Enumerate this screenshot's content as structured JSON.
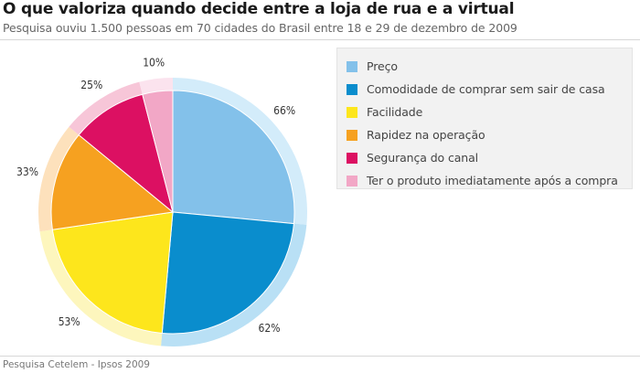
{
  "header": {
    "title": "O que valoriza quando decide entre a loja de rua e a virtual",
    "subtitle": "Pesquisa ouviu 1.500 pessoas em 70 cidades do Brasil entre 18 e 29 de dezembro de 2009"
  },
  "footer": {
    "source": "Pesquisa Cetelem - Ipsos 2009"
  },
  "chart_data": {
    "type": "pie",
    "title": "O que valoriza quando decide entre a loja de rua e a virtual",
    "legend_position": "right",
    "series": [
      {
        "name": "Preço",
        "value": 66,
        "label": "66%",
        "color": "#83c1ea",
        "halo": "#d3ecfa"
      },
      {
        "name": "Comodidade de comprar sem sair de casa",
        "value": 62,
        "label": "62%",
        "color": "#0a8dcd",
        "halo": "#b9e0f5"
      },
      {
        "name": "Facilidade",
        "value": 53,
        "label": "53%",
        "color": "#fde61c",
        "halo": "#fdf6bd"
      },
      {
        "name": "Rapidez na operação",
        "value": 33,
        "label": "33%",
        "color": "#f6a120",
        "halo": "#fde1bc"
      },
      {
        "name": "Segurança do canal",
        "value": 25,
        "label": "25%",
        "color": "#dc1062",
        "halo": "#f7c6d8"
      },
      {
        "name": "Ter o produto imediatamente após a compra",
        "value": 10,
        "label": "10%",
        "color": "#f2a7c6",
        "halo": "#fbe3ee"
      }
    ]
  }
}
